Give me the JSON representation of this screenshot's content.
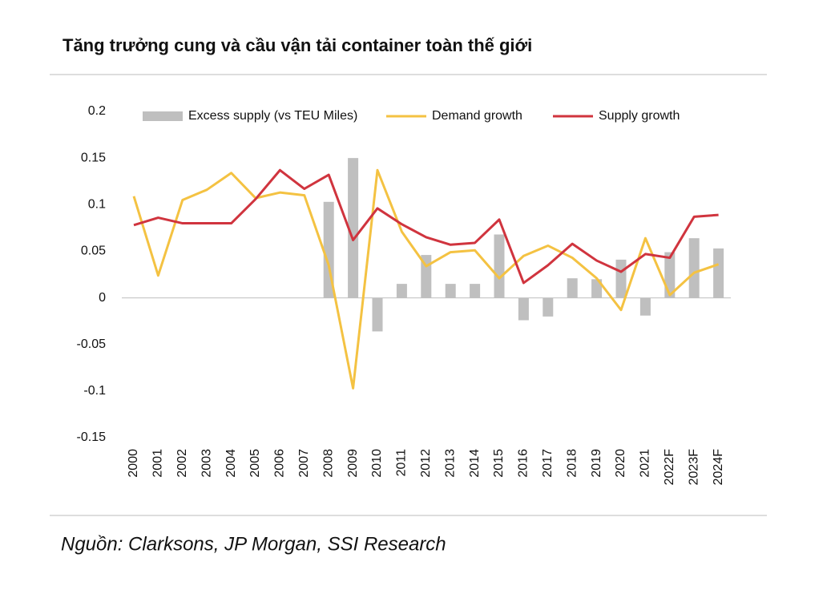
{
  "chart_data": {
    "type": "bar_line",
    "title": "Tăng trưởng cung và cầu vận tải container toàn thế giới",
    "source": "Nguồn: Clarksons, JP Morgan, SSI Research",
    "categories": [
      "2000",
      "2001",
      "2002",
      "2003",
      "2004",
      "2005",
      "2006",
      "2007",
      "2008",
      "2009",
      "2010",
      "2011",
      "2012",
      "2013",
      "2014",
      "2015",
      "2016",
      "2017",
      "2018",
      "2019",
      "2020",
      "2021",
      "2022F",
      "2023F",
      "2024F"
    ],
    "series": [
      {
        "name": "Excess supply (vs TEU Miles)",
        "type": "bar",
        "color": "#bfbfbf",
        "values": [
          null,
          null,
          null,
          null,
          null,
          null,
          null,
          null,
          0.103,
          0.15,
          -0.036,
          0.015,
          0.046,
          0.015,
          0.015,
          0.068,
          -0.024,
          -0.02,
          0.021,
          0.02,
          0.041,
          -0.019,
          0.049,
          0.064,
          0.053
        ]
      },
      {
        "name": "Demand growth",
        "type": "line",
        "color": "#f4c242",
        "values": [
          0.109,
          0.024,
          0.105,
          0.116,
          0.134,
          0.107,
          0.113,
          0.11,
          0.035,
          -0.097,
          0.137,
          0.071,
          0.034,
          0.049,
          0.051,
          0.021,
          0.045,
          0.056,
          0.043,
          0.021,
          -0.013,
          0.064,
          0.003,
          0.027,
          0.036
        ]
      },
      {
        "name": "Supply growth",
        "type": "line",
        "color": "#d0343e",
        "values": [
          0.078,
          0.086,
          0.08,
          0.08,
          0.08,
          0.106,
          0.137,
          0.117,
          0.132,
          0.062,
          0.096,
          0.079,
          0.065,
          0.057,
          0.059,
          0.084,
          0.016,
          0.035,
          0.058,
          0.04,
          0.028,
          0.047,
          0.043,
          0.087,
          0.089
        ]
      }
    ],
    "ylim": [
      -0.15,
      0.2
    ],
    "yticks": [
      0.2,
      0.15,
      0.1,
      0.05,
      0,
      -0.05,
      -0.1,
      -0.15
    ],
    "grid": false
  }
}
